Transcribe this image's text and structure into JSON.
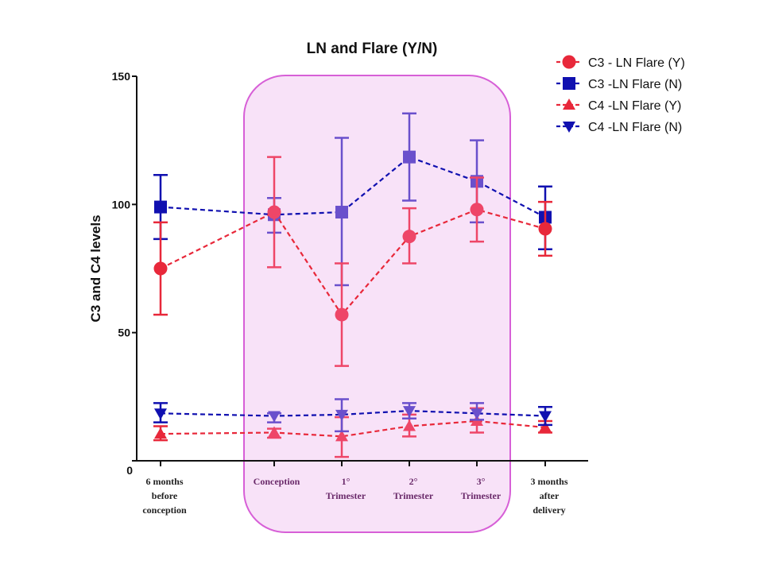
{
  "colors": {
    "red": "#e8283a",
    "pink": "#ee4668",
    "blue": "#1010b0",
    "purple": "#6a50cc",
    "shade_fill": "#f8e2f8",
    "shade_stroke": "#d75fd7"
  },
  "chart_data": {
    "type": "line",
    "title": "LN and Flare (Y/N)",
    "ylabel": "C3 and C4 levels",
    "xlabel": "",
    "ylim": [
      0,
      150
    ],
    "yticks": [
      0,
      50,
      100,
      150
    ],
    "categories": [
      [
        "6 months",
        "before",
        "conception"
      ],
      [
        "Conception"
      ],
      [
        "1°",
        "Trimester"
      ],
      [
        "2°",
        "Trimester"
      ],
      [
        "3°",
        "Trimester"
      ],
      [
        "3 months",
        "after",
        "delivery"
      ]
    ],
    "shaded_categories": [
      1,
      4
    ],
    "legend_position": "top-right",
    "series": [
      {
        "name": "C3 - LN  Flare (Y)",
        "marker": "circle",
        "values": [
          75,
          97,
          57,
          87.5,
          98,
          90.5
        ],
        "err_low": [
          57,
          75.5,
          37,
          77,
          85.5,
          80
        ],
        "err_high": [
          93,
          118.5,
          77,
          98.5,
          110.5,
          101
        ]
      },
      {
        "name": "C3 -LN  Flare (N)",
        "marker": "square",
        "values": [
          99,
          96,
          97,
          118.5,
          109,
          95
        ],
        "err_low": [
          86.5,
          89,
          68.5,
          101.5,
          93,
          82.5
        ],
        "err_high": [
          111.5,
          102.5,
          126,
          135.5,
          125,
          107
        ]
      },
      {
        "name": "C4 -LN  Flare (Y)",
        "marker": "triangle-up",
        "values": [
          10.5,
          11,
          9.5,
          13.5,
          15.5,
          13
        ],
        "err_low": [
          8,
          9,
          1.5,
          9.5,
          11,
          11
        ],
        "err_high": [
          13.5,
          12.5,
          17,
          18,
          20.5,
          15.5
        ]
      },
      {
        "name": "C4 -LN  Flare (N)",
        "marker": "triangle-down",
        "values": [
          18.5,
          17.5,
          18,
          19.5,
          18.5,
          17.5
        ],
        "err_low": [
          15,
          15,
          11.5,
          16.5,
          16,
          14
        ],
        "err_high": [
          22.5,
          18.5,
          24,
          22.5,
          22.5,
          21
        ]
      }
    ]
  }
}
